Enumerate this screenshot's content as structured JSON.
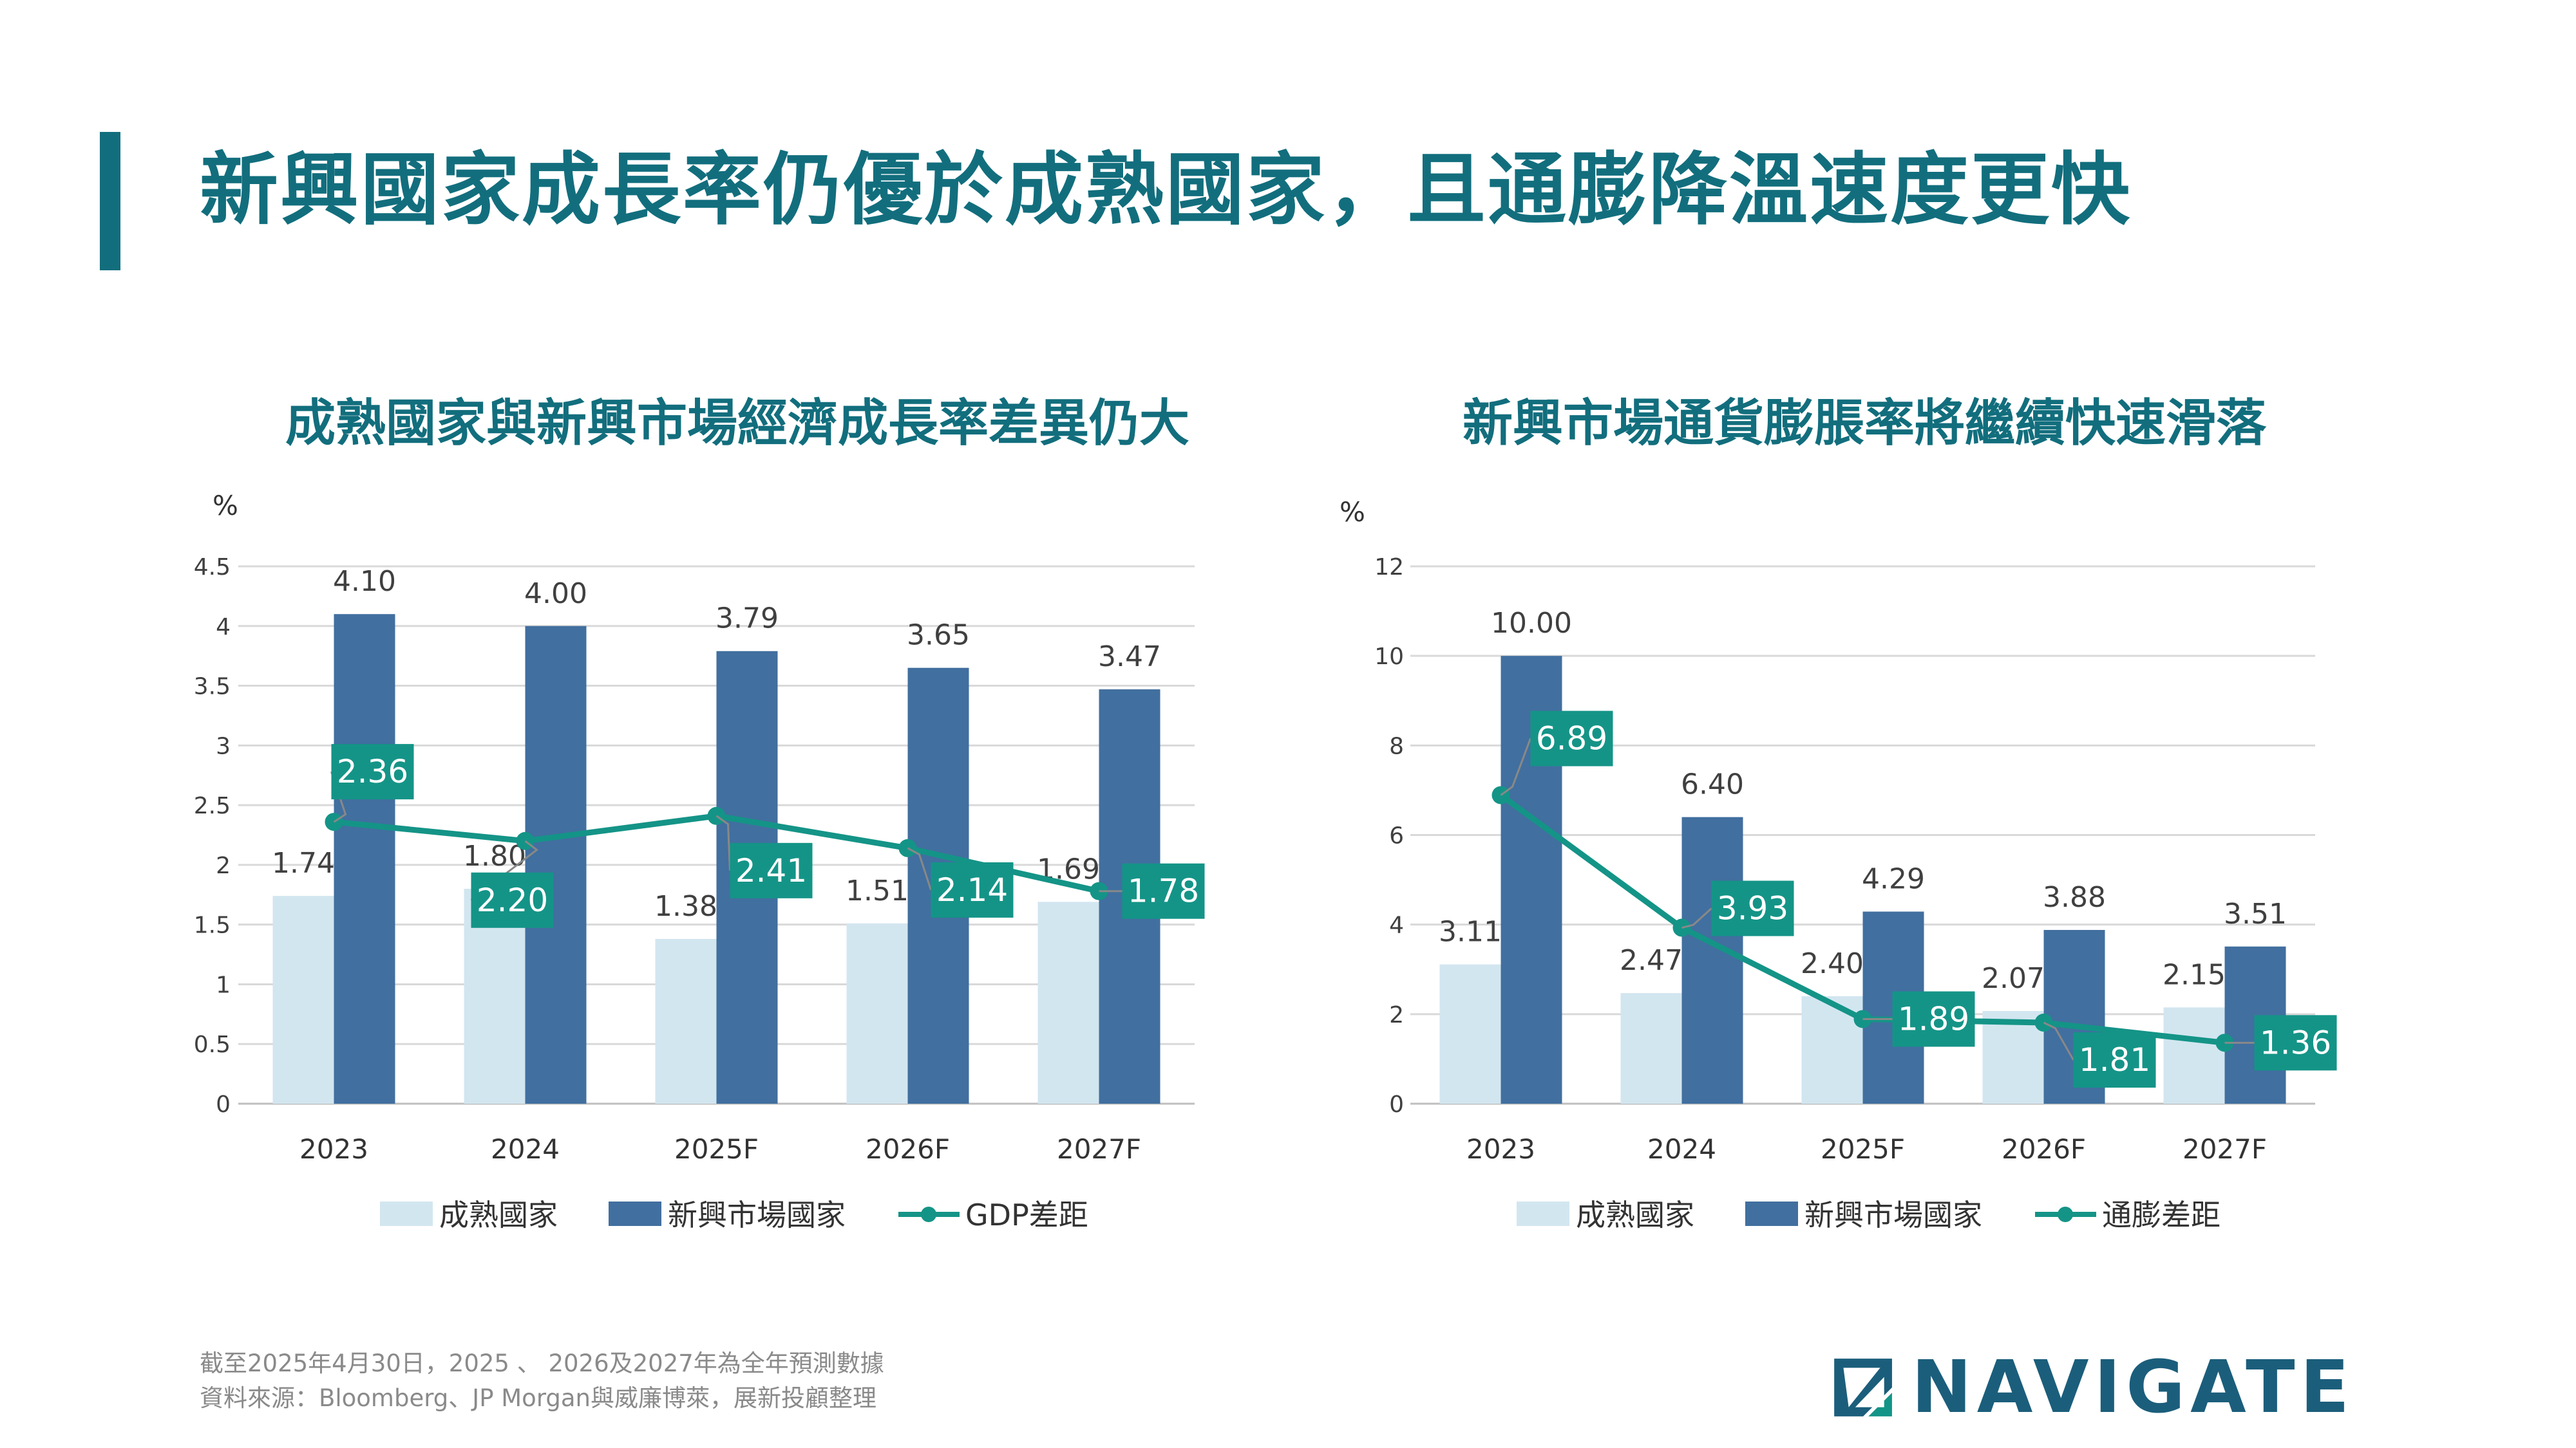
{
  "page": {
    "title": "新興國家成長率仍優於成熟國家，且通膨降溫速度更快",
    "footnote_line1": "截至2025年4月30日，2025 、 2026及2027年為全年預測數據",
    "footnote_line2": "資料來源：Bloomberg、JP Morgan與威廉博萊，展新投顧整理",
    "logo_text": "NAVIGATE"
  },
  "colors": {
    "accent": "#126e7d",
    "light_bar": "#d2e6f0",
    "dark_bar": "#416f9f",
    "line": "#149487",
    "grid": "#d9d9d9",
    "label_text": "#404040"
  },
  "chart_data": [
    {
      "type": "bar",
      "title": "成熟國家與新興市場經濟成長率差異仍大",
      "ylabel": "%",
      "ylim": [
        0,
        4.5
      ],
      "ytick_values": [
        0,
        0.5,
        1,
        1.5,
        2,
        2.5,
        3,
        3.5,
        4,
        4.5
      ],
      "ytick_labels": [
        "0",
        "0.5",
        "1",
        "1.5",
        "2",
        "2.5",
        "3",
        "3.5",
        "4",
        "4.5"
      ],
      "categories": [
        "2023",
        "2024",
        "2025F",
        "2026F",
        "2027F"
      ],
      "series": [
        {
          "name": "成熟國家",
          "kind": "bar",
          "values": [
            1.74,
            1.8,
            1.38,
            1.51,
            1.69
          ],
          "labels": [
            "1.74",
            "1.80",
            "1.38",
            "1.51",
            "1.69"
          ]
        },
        {
          "name": "新興市場國家",
          "kind": "bar",
          "values": [
            4.1,
            4.0,
            3.79,
            3.65,
            3.47
          ],
          "labels": [
            "4.10",
            "4.00",
            "3.79",
            "3.65",
            "3.47"
          ]
        },
        {
          "name": "GDP差距",
          "kind": "line",
          "values": [
            2.36,
            2.2,
            2.41,
            2.14,
            1.78
          ],
          "labels": [
            "2.36",
            "2.20",
            "2.41",
            "2.14",
            "1.78"
          ]
        }
      ],
      "legend": [
        "成熟國家",
        "新興市場國家",
        "GDP差距"
      ],
      "legend_position": "bottom"
    },
    {
      "type": "bar",
      "title": "新興市場通貨膨脹率將繼續快速滑落",
      "ylabel": "%",
      "ylim": [
        0,
        12
      ],
      "ytick_values": [
        0,
        2,
        4,
        6,
        8,
        10,
        12
      ],
      "ytick_labels": [
        "0",
        "2",
        "4",
        "6",
        "8",
        "10",
        "12"
      ],
      "categories": [
        "2023",
        "2024",
        "2025F",
        "2026F",
        "2027F"
      ],
      "series": [
        {
          "name": "成熟國家",
          "kind": "bar",
          "values": [
            3.11,
            2.47,
            2.4,
            2.07,
            2.15
          ],
          "labels": [
            "3.11",
            "2.47",
            "2.40",
            "2.07",
            "2.15"
          ]
        },
        {
          "name": "新興市場國家",
          "kind": "bar",
          "values": [
            10.0,
            6.4,
            4.29,
            3.88,
            3.51
          ],
          "labels": [
            "10.00",
            "6.40",
            "4.29",
            "3.88",
            "3.51"
          ]
        },
        {
          "name": "通膨差距",
          "kind": "line",
          "values": [
            6.89,
            3.93,
            1.89,
            1.81,
            1.36
          ],
          "labels": [
            "6.89",
            "3.93",
            "1.89",
            "1.81",
            "1.36"
          ]
        }
      ],
      "legend": [
        "成熟國家",
        "新興市場國家",
        "通膨差距"
      ],
      "legend_position": "bottom"
    }
  ]
}
